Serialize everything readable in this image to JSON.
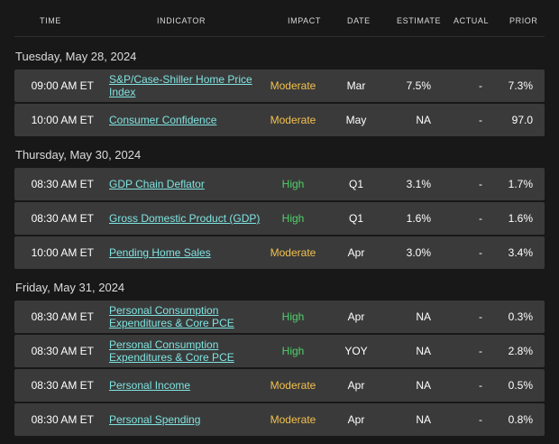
{
  "header": {
    "time": "TIME",
    "indicator": "INDICATOR",
    "impact": "IMPACT",
    "date": "DATE",
    "estimate": "ESTIMATE",
    "actual": "ACTUAL",
    "prior": "PRIOR"
  },
  "groups": [
    {
      "day": "Tuesday, May 28, 2024",
      "rows": [
        {
          "time": "09:00 AM ET",
          "indicator": "S&P/Case-Shiller Home Price Index",
          "impact": "Moderate",
          "date": "Mar",
          "estimate": "7.5%",
          "actual": "-",
          "prior": "7.3%"
        },
        {
          "time": "10:00 AM ET",
          "indicator": "Consumer Confidence",
          "impact": "Moderate",
          "date": "May",
          "estimate": "NA",
          "actual": "-",
          "prior": "97.0"
        }
      ]
    },
    {
      "day": "Thursday, May 30, 2024",
      "rows": [
        {
          "time": "08:30 AM ET",
          "indicator": "GDP Chain Deflator",
          "impact": "High",
          "date": "Q1",
          "estimate": "3.1%",
          "actual": "-",
          "prior": "1.7%"
        },
        {
          "time": "08:30 AM ET",
          "indicator": "Gross Domestic Product (GDP)",
          "impact": "High",
          "date": "Q1",
          "estimate": "1.6%",
          "actual": "-",
          "prior": "1.6%"
        },
        {
          "time": "10:00 AM ET",
          "indicator": "Pending Home Sales",
          "impact": "Moderate",
          "date": "Apr",
          "estimate": "3.0%",
          "actual": "-",
          "prior": "3.4%"
        }
      ]
    },
    {
      "day": "Friday, May 31, 2024",
      "rows": [
        {
          "time": "08:30 AM ET",
          "indicator": "Personal Consumption Expenditures & Core PCE",
          "impact": "High",
          "date": "Apr",
          "estimate": "NA",
          "actual": "-",
          "prior": "0.3%"
        },
        {
          "time": "08:30 AM ET",
          "indicator": "Personal Consumption Expenditures & Core PCE",
          "impact": "High",
          "date": "YOY",
          "estimate": "NA",
          "actual": "-",
          "prior": "2.8%"
        },
        {
          "time": "08:30 AM ET",
          "indicator": "Personal Income",
          "impact": "Moderate",
          "date": "Apr",
          "estimate": "NA",
          "actual": "-",
          "prior": "0.5%"
        },
        {
          "time": "08:30 AM ET",
          "indicator": "Personal Spending",
          "impact": "Moderate",
          "date": "Apr",
          "estimate": "NA",
          "actual": "-",
          "prior": "0.8%"
        }
      ]
    }
  ]
}
